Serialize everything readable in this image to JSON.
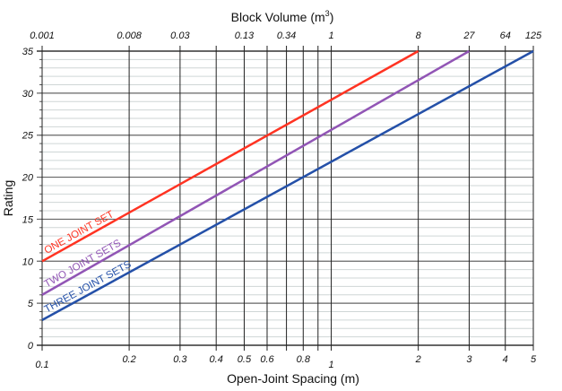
{
  "chart_data": {
    "type": "line",
    "title": "",
    "top_axis_label": "Block Volume  (m",
    "top_axis_sup": "3",
    "top_axis_close": ")",
    "xlabel": "Open-Joint Spacing  (m)",
    "ylabel": "Rating",
    "xscale": "log",
    "xlim": [
      0.1,
      5
    ],
    "ylim": [
      0,
      35
    ],
    "grid": true,
    "x_ticks": [
      0.1,
      0.2,
      0.3,
      0.4,
      0.5,
      0.6,
      0.7,
      0.8,
      0.9,
      1,
      2,
      3,
      4,
      5
    ],
    "x_tick_labels": [
      {
        "v": 0.1,
        "t": "0.1"
      },
      {
        "v": 0.2,
        "t": "0.2"
      },
      {
        "v": 0.3,
        "t": "0.3"
      },
      {
        "v": 0.4,
        "t": "0.4"
      },
      {
        "v": 0.5,
        "t": "0.5"
      },
      {
        "v": 0.6,
        "t": "0.6"
      },
      {
        "v": 0.8,
        "t": "0.8"
      },
      {
        "v": 1,
        "t": "1"
      },
      {
        "v": 2,
        "t": "2"
      },
      {
        "v": 3,
        "t": "3"
      },
      {
        "v": 4,
        "t": "4"
      },
      {
        "v": 5,
        "t": "5"
      }
    ],
    "top_tick_labels": [
      {
        "v": 0.1,
        "t": "0.001"
      },
      {
        "v": 0.2,
        "t": "0.008"
      },
      {
        "v": 0.3,
        "t": "0.03"
      },
      {
        "v": 0.5,
        "t": "0.13"
      },
      {
        "v": 0.7,
        "t": "0.34"
      },
      {
        "v": 1,
        "t": "1"
      },
      {
        "v": 2,
        "t": "8"
      },
      {
        "v": 3,
        "t": "27"
      },
      {
        "v": 4,
        "t": "64"
      },
      {
        "v": 5,
        "t": "125"
      }
    ],
    "y_ticks": [
      0,
      5,
      10,
      15,
      20,
      25,
      30,
      35
    ],
    "series": [
      {
        "name": "ONE JOINT SET",
        "color": "#ff3322",
        "x": [
          0.1,
          2
        ],
        "y": [
          10,
          35
        ]
      },
      {
        "name": "TWO JOINT SETS",
        "color": "#9155b5",
        "x": [
          0.1,
          3
        ],
        "y": [
          6,
          35
        ]
      },
      {
        "name": "THREE JOINT SETS",
        "color": "#2450a8",
        "x": [
          0.1,
          5
        ],
        "y": [
          3,
          35
        ]
      }
    ]
  }
}
